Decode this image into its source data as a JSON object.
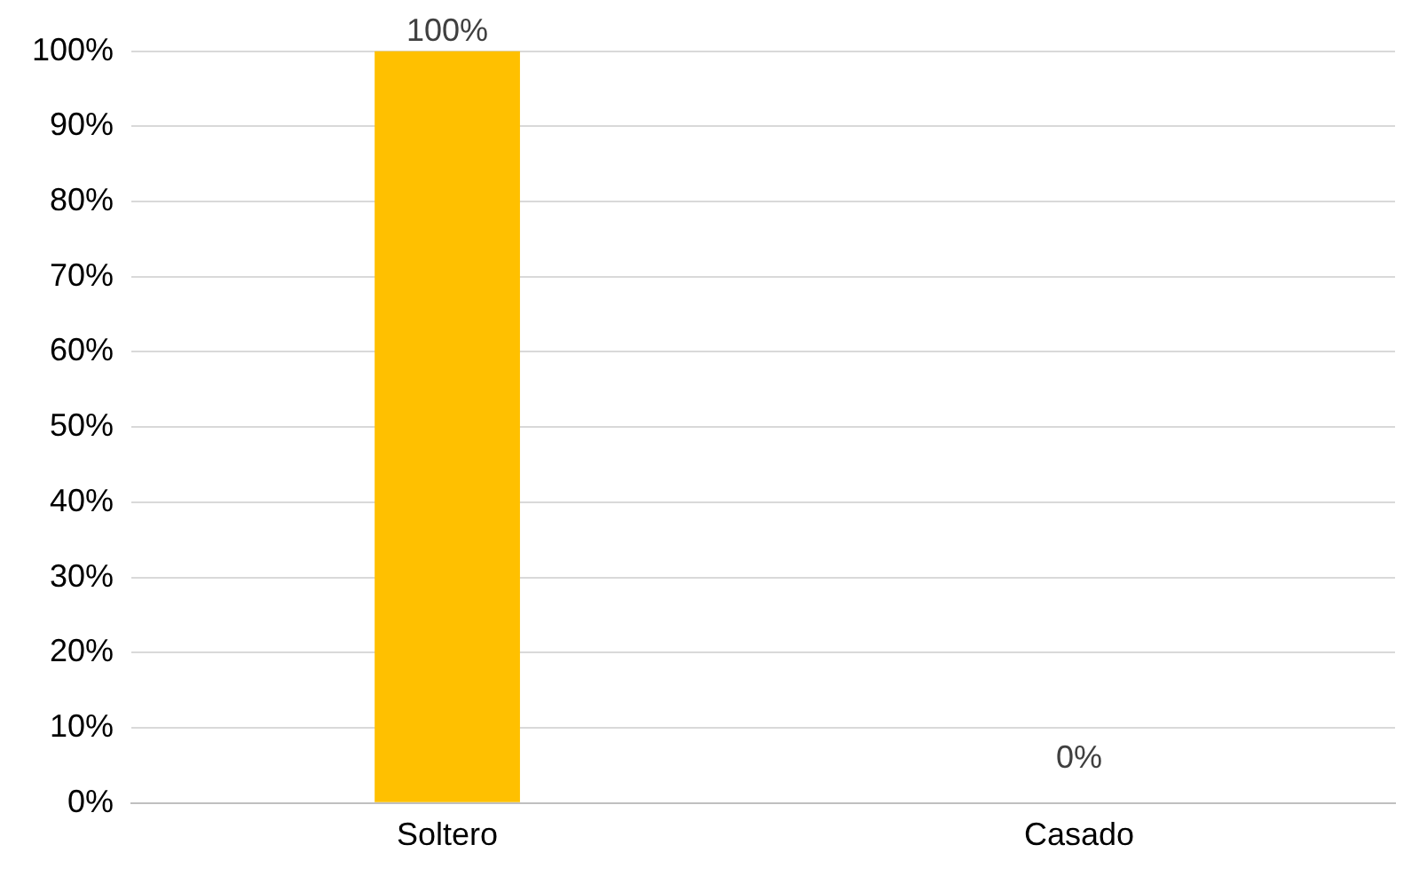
{
  "chart_data": {
    "type": "bar",
    "categories": [
      "Soltero",
      "Casado"
    ],
    "values": [
      100,
      0
    ],
    "color": "#ffc000",
    "value_labels": [
      "100%",
      "0%"
    ],
    "ylim": [
      0,
      100
    ],
    "yticks": [
      {
        "value": 0,
        "label": "0%"
      },
      {
        "value": 10,
        "label": "10%"
      },
      {
        "value": 20,
        "label": "20%"
      },
      {
        "value": 30,
        "label": "30%"
      },
      {
        "value": 40,
        "label": "40%"
      },
      {
        "value": 50,
        "label": "50%"
      },
      {
        "value": 60,
        "label": "60%"
      },
      {
        "value": 70,
        "label": "70%"
      },
      {
        "value": 80,
        "label": "80%"
      },
      {
        "value": 90,
        "label": "90%"
      },
      {
        "value": 100,
        "label": "100%"
      }
    ],
    "grid": "y",
    "legend": false
  }
}
